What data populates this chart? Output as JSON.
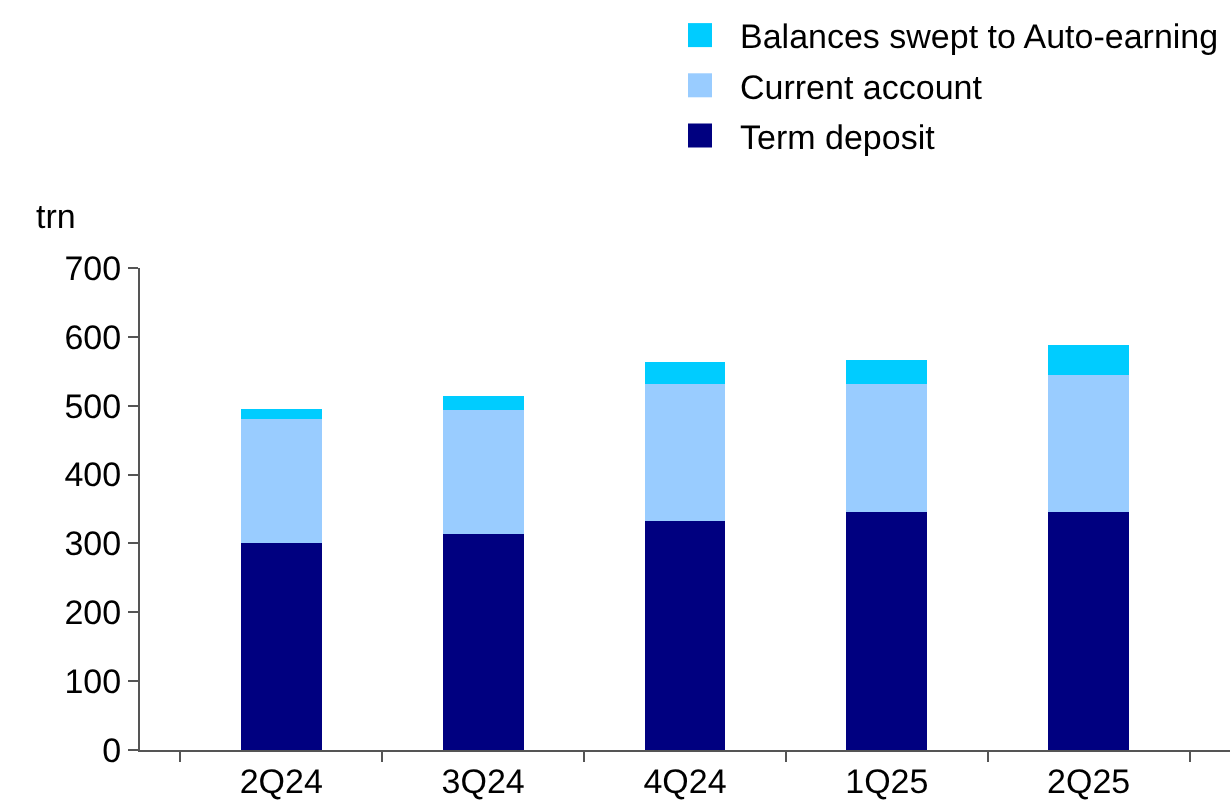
{
  "chart_data": {
    "type": "bar",
    "stacked": true,
    "ylabel": "trn",
    "categories": [
      "2Q24",
      "3Q24",
      "4Q24",
      "1Q25",
      "2Q25"
    ],
    "series": [
      {
        "name": "Term deposit",
        "color": "#000080",
        "values": [
          301,
          313,
          333,
          345,
          346
        ]
      },
      {
        "name": "Current account",
        "color": "#99ccff",
        "values": [
          180,
          181,
          199,
          186,
          198
        ]
      },
      {
        "name": "Balances swept to Auto-earning",
        "color": "#00ccff",
        "values": [
          14,
          20,
          31,
          35,
          44
        ]
      }
    ],
    "ylim": [
      0,
      700
    ],
    "yticks": [
      0,
      100,
      200,
      300,
      400,
      500,
      600,
      700
    ],
    "grid": false,
    "legend": "top right"
  }
}
